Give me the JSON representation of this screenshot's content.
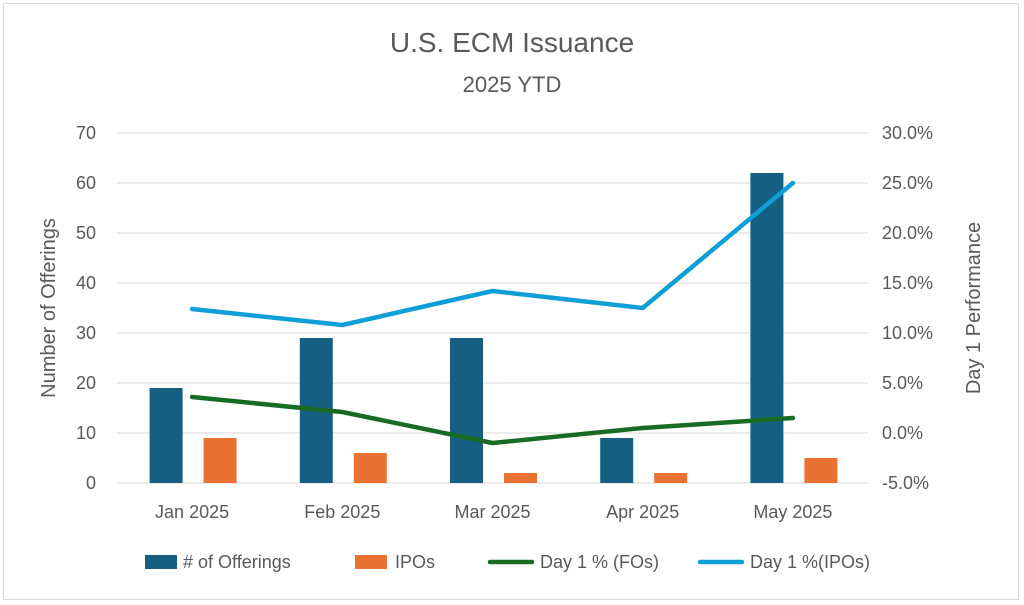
{
  "chart_data": {
    "type": "bar",
    "title": "U.S. ECM Issuance",
    "subtitle": "2025 YTD",
    "categories": [
      "Jan 2025",
      "Feb 2025",
      "Mar 2025",
      "Apr 2025",
      "May 2025"
    ],
    "series": [
      {
        "name": "# of Offerings",
        "type": "bar",
        "axis": "left",
        "color": "#156082",
        "values": [
          19,
          29,
          29,
          9,
          62
        ]
      },
      {
        "name": "IPOs",
        "type": "bar",
        "axis": "left",
        "color": "#e97132",
        "values": [
          9,
          6,
          2,
          2,
          5
        ]
      },
      {
        "name": "Day 1 % (FOs)",
        "type": "line",
        "axis": "right",
        "color": "#196b24",
        "values": [
          3.6,
          2.1,
          -1.0,
          0.5,
          1.5
        ]
      },
      {
        "name": "Day 1 %(IPOs)",
        "type": "line",
        "axis": "right",
        "color": "#0f9ed5",
        "values": [
          12.4,
          10.8,
          14.2,
          12.5,
          25.0
        ]
      }
    ],
    "left_axis": {
      "label": "Number of Offerings",
      "min": 0,
      "max": 70,
      "ticks": [
        "0",
        "10",
        "20",
        "30",
        "40",
        "50",
        "60",
        "70"
      ]
    },
    "right_axis": {
      "label": "Day 1 Performance",
      "min": -5,
      "max": 30,
      "ticks": [
        "-5.0%",
        "0.0%",
        "5.0%",
        "10.0%",
        "15.0%",
        "20.0%",
        "25.0%",
        "30.0%"
      ]
    },
    "grid": true,
    "legend_position": "bottom"
  }
}
